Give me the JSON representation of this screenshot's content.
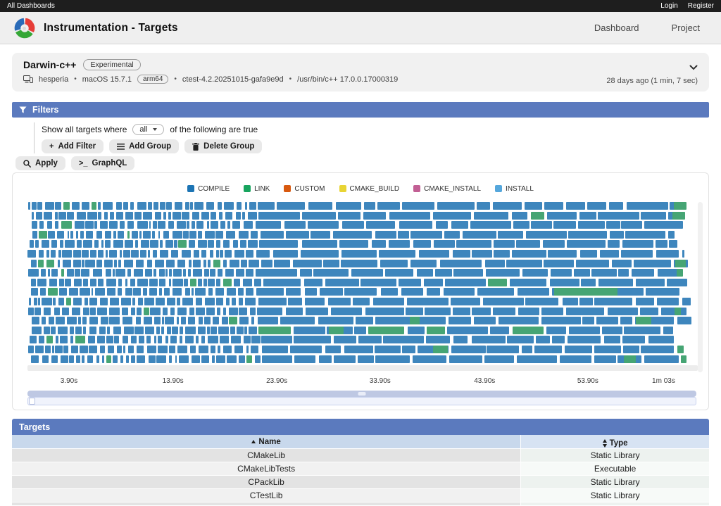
{
  "topbar": {
    "all_dashboards": "All Dashboards",
    "login": "Login",
    "register": "Register"
  },
  "header": {
    "title": "Instrumentation - Targets",
    "nav_dashboard": "Dashboard",
    "nav_project": "Project"
  },
  "build": {
    "name": "Darwin-c++",
    "badge": "Experimental",
    "site": "hesperia",
    "os": "macOS 15.7.1",
    "arch": "arm64",
    "ctest_version": "ctest-4.2.20251015-gafa9e9d",
    "compiler": "/usr/bin/c++ 17.0.0.17000319",
    "time_summary": "28 days ago (1 min, 7 sec)",
    "separator": "•"
  },
  "filters": {
    "title": "Filters",
    "show_prefix": "Show all targets where",
    "combine_value": "all",
    "show_suffix": "of the following are true",
    "add_filter": "Add Filter",
    "add_group": "Add Group",
    "delete_group": "Delete Group",
    "apply": "Apply",
    "graphql": "GraphQL",
    "plus_glyph": "+",
    "terminal_glyph": ">_"
  },
  "chart_data": {
    "type": "gantt-timeline",
    "description": "Instrumented build task timeline: 17 rows of task bars over a ~63 second build, colored by task type (mostly COMPILE with scattered LINK segments)",
    "legend": [
      {
        "label": "COMPILE",
        "color": "#1c74b4"
      },
      {
        "label": "LINK",
        "color": "#17a45e"
      },
      {
        "label": "CUSTOM",
        "color": "#d8590f"
      },
      {
        "label": "CMAKE_BUILD",
        "color": "#e8d434"
      },
      {
        "label": "CMAKE_INSTALL",
        "color": "#c25f94"
      },
      {
        "label": "INSTALL",
        "color": "#55a7dc"
      }
    ],
    "x_ticks": [
      {
        "label": "3.90s",
        "pos": 6.2
      },
      {
        "label": "13.90s",
        "pos": 21.7
      },
      {
        "label": "23.90s",
        "pos": 37.2
      },
      {
        "label": "33.90s",
        "pos": 52.6
      },
      {
        "label": "43.90s",
        "pos": 68.2
      },
      {
        "label": "53.90s",
        "pos": 83.6
      },
      {
        "label": "1m 03s",
        "pos": 94.9
      }
    ],
    "rows": 17,
    "dense_until_pct": 34,
    "bar_compile": "#3e86bd",
    "bar_link": "#46a574",
    "green_chance": 0.05,
    "seed": 20251015,
    "highlights": [
      {
        "row": 0,
        "start": 96.4,
        "width": 1.9
      },
      {
        "row": 1,
        "start": 96.2,
        "width": 1.9
      },
      {
        "row": 6,
        "start": 96.6,
        "width": 1.6
      },
      {
        "row": 7,
        "start": 96.9,
        "width": 0.9
      },
      {
        "row": 9,
        "start": 78.6,
        "width": 9.4
      },
      {
        "row": 11,
        "start": 96.5,
        "width": 1.0
      },
      {
        "row": 12,
        "start": 57.0,
        "width": 1.5
      },
      {
        "row": 12,
        "start": 90.8,
        "width": 2.3
      },
      {
        "row": 13,
        "start": 45.0,
        "width": 2.2
      },
      {
        "row": 15,
        "start": 60.5,
        "width": 2.2
      },
      {
        "row": 15,
        "start": 97.0,
        "width": 0.9
      },
      {
        "row": 16,
        "start": 89.0,
        "width": 1.8
      },
      {
        "row": 16,
        "start": 97.5,
        "width": 0.8
      }
    ]
  },
  "targets_table": {
    "title": "Targets",
    "columns": [
      {
        "label": "Name",
        "sort": "asc"
      },
      {
        "label": "Type",
        "sort": "both"
      }
    ],
    "rows": [
      {
        "name": "CMakeLib",
        "type": "Static Library"
      },
      {
        "name": "CMakeLibTests",
        "type": "Executable"
      },
      {
        "name": "CPackLib",
        "type": "Static Library"
      },
      {
        "name": "CTestLib",
        "type": "Static Library"
      }
    ]
  }
}
